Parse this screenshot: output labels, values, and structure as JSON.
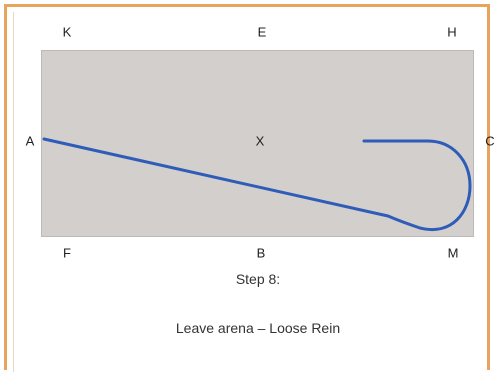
{
  "arena": {
    "markers": {
      "top": [
        "K",
        "E",
        "H"
      ],
      "left": "A",
      "center": "X",
      "right": "C",
      "bottom": [
        "F",
        "B",
        "M"
      ]
    },
    "arena_color": "#d2cfcd",
    "path_color": "#2e5cb8",
    "frame_color": "#e8a35c"
  },
  "step": {
    "title": "Step 8:",
    "caption": "Leave arena – Loose Rein"
  }
}
